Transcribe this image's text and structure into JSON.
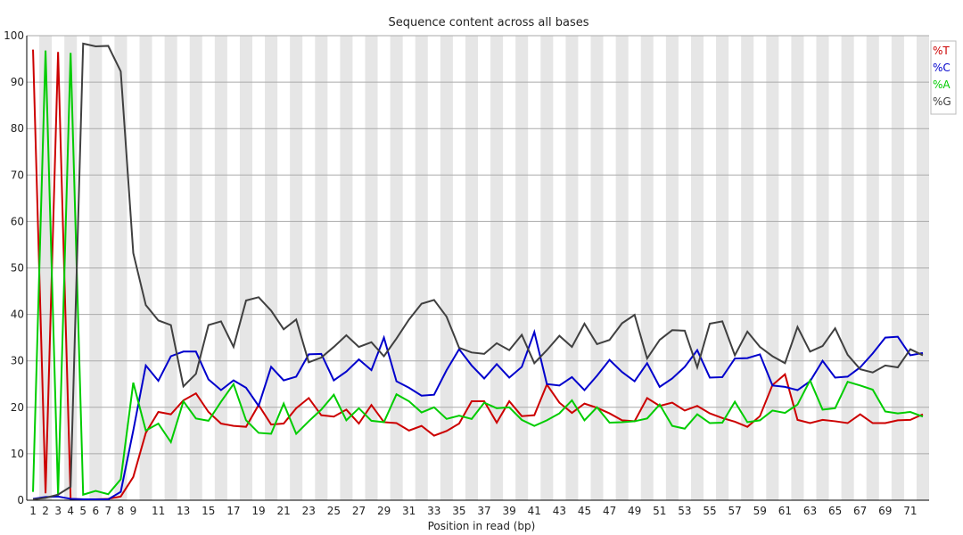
{
  "chart_data": {
    "type": "line",
    "title": "Sequence content across all bases",
    "xlabel": "Position in read (bp)",
    "ylabel": "",
    "ylim": [
      0,
      100
    ],
    "yticks": [
      0,
      10,
      20,
      30,
      40,
      50,
      60,
      70,
      80,
      90,
      100
    ],
    "xticks": [
      1,
      2,
      3,
      4,
      5,
      6,
      7,
      8,
      9,
      11,
      13,
      15,
      17,
      19,
      21,
      23,
      25,
      27,
      29,
      31,
      33,
      35,
      37,
      39,
      41,
      43,
      45,
      47,
      49,
      51,
      53,
      55,
      57,
      59,
      61,
      63,
      65,
      67,
      69,
      71
    ],
    "x": [
      1,
      2,
      3,
      4,
      5,
      6,
      7,
      8,
      9,
      10,
      11,
      12,
      13,
      14,
      15,
      16,
      17,
      18,
      19,
      20,
      21,
      22,
      23,
      24,
      25,
      26,
      27,
      28,
      29,
      30,
      31,
      32,
      33,
      34,
      35,
      36,
      37,
      38,
      39,
      40,
      41,
      42,
      43,
      44,
      45,
      46,
      47,
      48,
      49,
      50,
      51,
      52,
      53,
      54,
      55,
      56,
      57,
      58,
      59,
      60,
      61,
      62,
      63,
      64,
      65,
      66,
      67,
      68,
      69,
      70,
      71,
      72
    ],
    "grid": true,
    "legend_position": "top-right",
    "series": [
      {
        "name": "%T",
        "color": "#cc0000",
        "values": [
          97,
          1.5,
          96.5,
          0.3,
          0.2,
          0.2,
          0.3,
          0.8,
          5,
          14.5,
          19,
          18.5,
          21.5,
          23,
          19,
          16.5,
          16,
          15.8,
          20.5,
          16.3,
          16.5,
          19.8,
          22,
          18.3,
          18,
          19.5,
          16.5,
          20.5,
          16.8,
          16.6,
          15,
          16,
          13.9,
          14.9,
          16.5,
          21.3,
          21.3,
          16.7,
          21.3,
          18.1,
          18.3,
          24.9,
          21,
          18.8,
          20.8,
          19.9,
          18.7,
          17.2,
          17,
          22,
          20.3,
          21,
          19.3,
          20.3,
          18.7,
          17.7,
          16.9,
          15.8,
          18.1,
          24.8,
          27.1,
          17.3,
          16.6,
          17.3,
          17,
          16.6,
          18.5,
          16.6,
          16.6,
          17.2,
          17.3,
          18.5
        ]
      },
      {
        "name": "%C",
        "color": "#0000cc",
        "values": [
          0.3,
          0.7,
          0.8,
          0.3,
          0.2,
          0.2,
          0.2,
          1.8,
          15,
          29,
          25.7,
          31,
          32,
          32,
          26,
          23.7,
          25.8,
          24.2,
          20.3,
          28.7,
          25.8,
          26.6,
          31.4,
          31.5,
          25.8,
          27.7,
          30.3,
          28,
          35,
          25.6,
          24.2,
          22.5,
          22.7,
          28,
          32.5,
          29,
          26.2,
          29.3,
          26.4,
          28.7,
          36.2,
          25,
          24.7,
          26.5,
          23.7,
          26.8,
          30.2,
          27.6,
          25.6,
          29.5,
          24.4,
          26.2,
          28.7,
          32.3,
          26.4,
          26.5,
          30.5,
          30.6,
          31.4,
          24.7,
          24.4,
          23.7,
          25.6,
          30,
          26.4,
          26.6,
          28.6,
          31.6,
          35,
          35.2,
          31.2,
          31.7
        ]
      },
      {
        "name": "%A",
        "color": "#00cc00",
        "values": [
          1.8,
          96.8,
          1,
          96.3,
          1.2,
          2,
          1.3,
          4.5,
          25.3,
          15,
          16.5,
          12.5,
          21.3,
          17.6,
          17.1,
          21.2,
          25,
          17.2,
          14.5,
          14.3,
          20.8,
          14.3,
          17,
          19.5,
          22.7,
          17.2,
          19.8,
          17.1,
          16.8,
          22.8,
          21.3,
          18.9,
          20,
          17.5,
          18.2,
          17.5,
          21,
          19.8,
          20,
          17.3,
          16,
          17.2,
          18.7,
          21.5,
          17.2,
          20,
          16.7,
          16.8,
          17,
          17.6,
          20.6,
          16,
          15.4,
          18.5,
          16.6,
          16.7,
          21.2,
          16.8,
          17.2,
          19.3,
          18.8,
          20.6,
          25.8,
          19.5,
          19.8,
          25.5,
          24.7,
          23.8,
          19.1,
          18.7,
          19,
          18
        ]
      },
      {
        "name": "%G",
        "color": "#404040",
        "values": [
          0.2,
          0.5,
          1.2,
          2.9,
          98.3,
          97.7,
          97.8,
          92.3,
          53.2,
          42,
          38.7,
          37.7,
          24.5,
          27.2,
          37.7,
          38.5,
          33,
          43,
          43.7,
          40.8,
          36.8,
          38.9,
          29.7,
          30.7,
          33,
          35.5,
          33,
          34,
          31,
          34.8,
          38.9,
          42.3,
          43.1,
          39.5,
          32.8,
          31.8,
          31.5,
          33.8,
          32.3,
          35.6,
          29.5,
          32.3,
          35.4,
          33,
          38,
          33.6,
          34.5,
          38.1,
          39.9,
          30.5,
          34.5,
          36.6,
          36.5,
          28.6,
          38,
          38.5,
          31.2,
          36.3,
          33,
          31,
          29.5,
          37.3,
          32,
          33.2,
          37,
          31.3,
          28.2,
          27.5,
          29,
          28.6,
          32.5,
          31.2
        ]
      }
    ]
  }
}
